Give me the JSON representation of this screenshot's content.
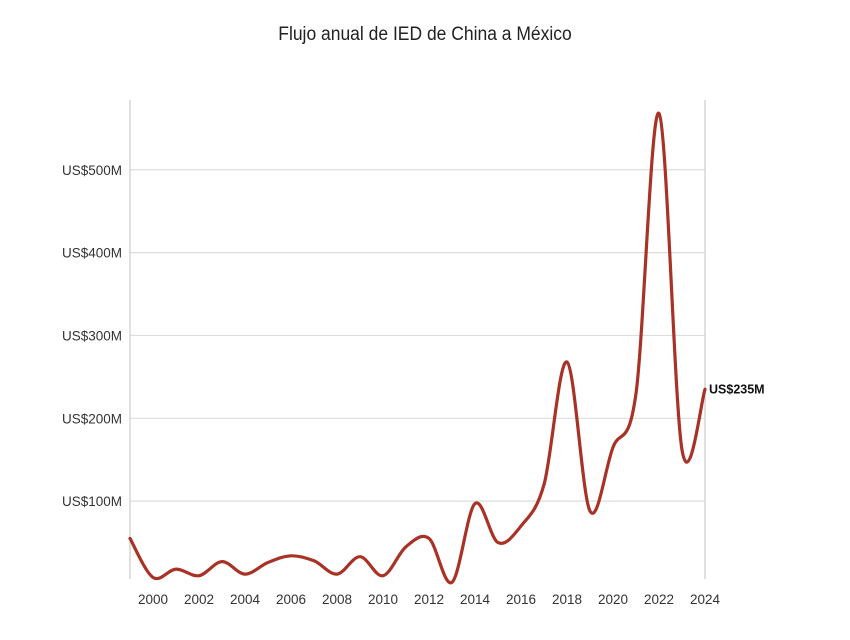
{
  "chart_data": {
    "type": "line",
    "title": "Flujo anual de IED de China a México",
    "xlabel": "",
    "ylabel": "",
    "x": [
      1999,
      2000,
      2001,
      2002,
      2003,
      2004,
      2005,
      2006,
      2007,
      2008,
      2009,
      2010,
      2011,
      2012,
      2013,
      2014,
      2015,
      2016,
      2017,
      2018,
      2019,
      2020,
      2021,
      2022,
      2023,
      2024
    ],
    "series": [
      {
        "values": [
          55,
          8,
          18,
          10,
          27,
          12,
          26,
          34,
          28,
          12,
          33,
          10,
          45,
          55,
          2,
          97,
          50,
          70,
          120,
          268,
          88,
          165,
          230,
          568,
          162,
          235
        ],
        "color": "#a83226"
      }
    ],
    "x_ticks": [
      "2000",
      "2002",
      "2004",
      "2006",
      "2008",
      "2010",
      "2012",
      "2014",
      "2016",
      "2018",
      "2020",
      "2022",
      "2024"
    ],
    "y_ticks": [
      {
        "value": 100,
        "label": "US$100M"
      },
      {
        "value": 200,
        "label": "US$200M"
      },
      {
        "value": 300,
        "label": "US$300M"
      },
      {
        "value": 400,
        "label": "US$400M"
      },
      {
        "value": 500,
        "label": "US$500M"
      }
    ],
    "end_label": "US$235M",
    "xlim": [
      1999,
      2024
    ],
    "ylim": [
      0,
      580
    ],
    "grid": true,
    "colors": {
      "line": "#a83226",
      "grid": "#dddddd",
      "axis": "#cccccc"
    }
  }
}
